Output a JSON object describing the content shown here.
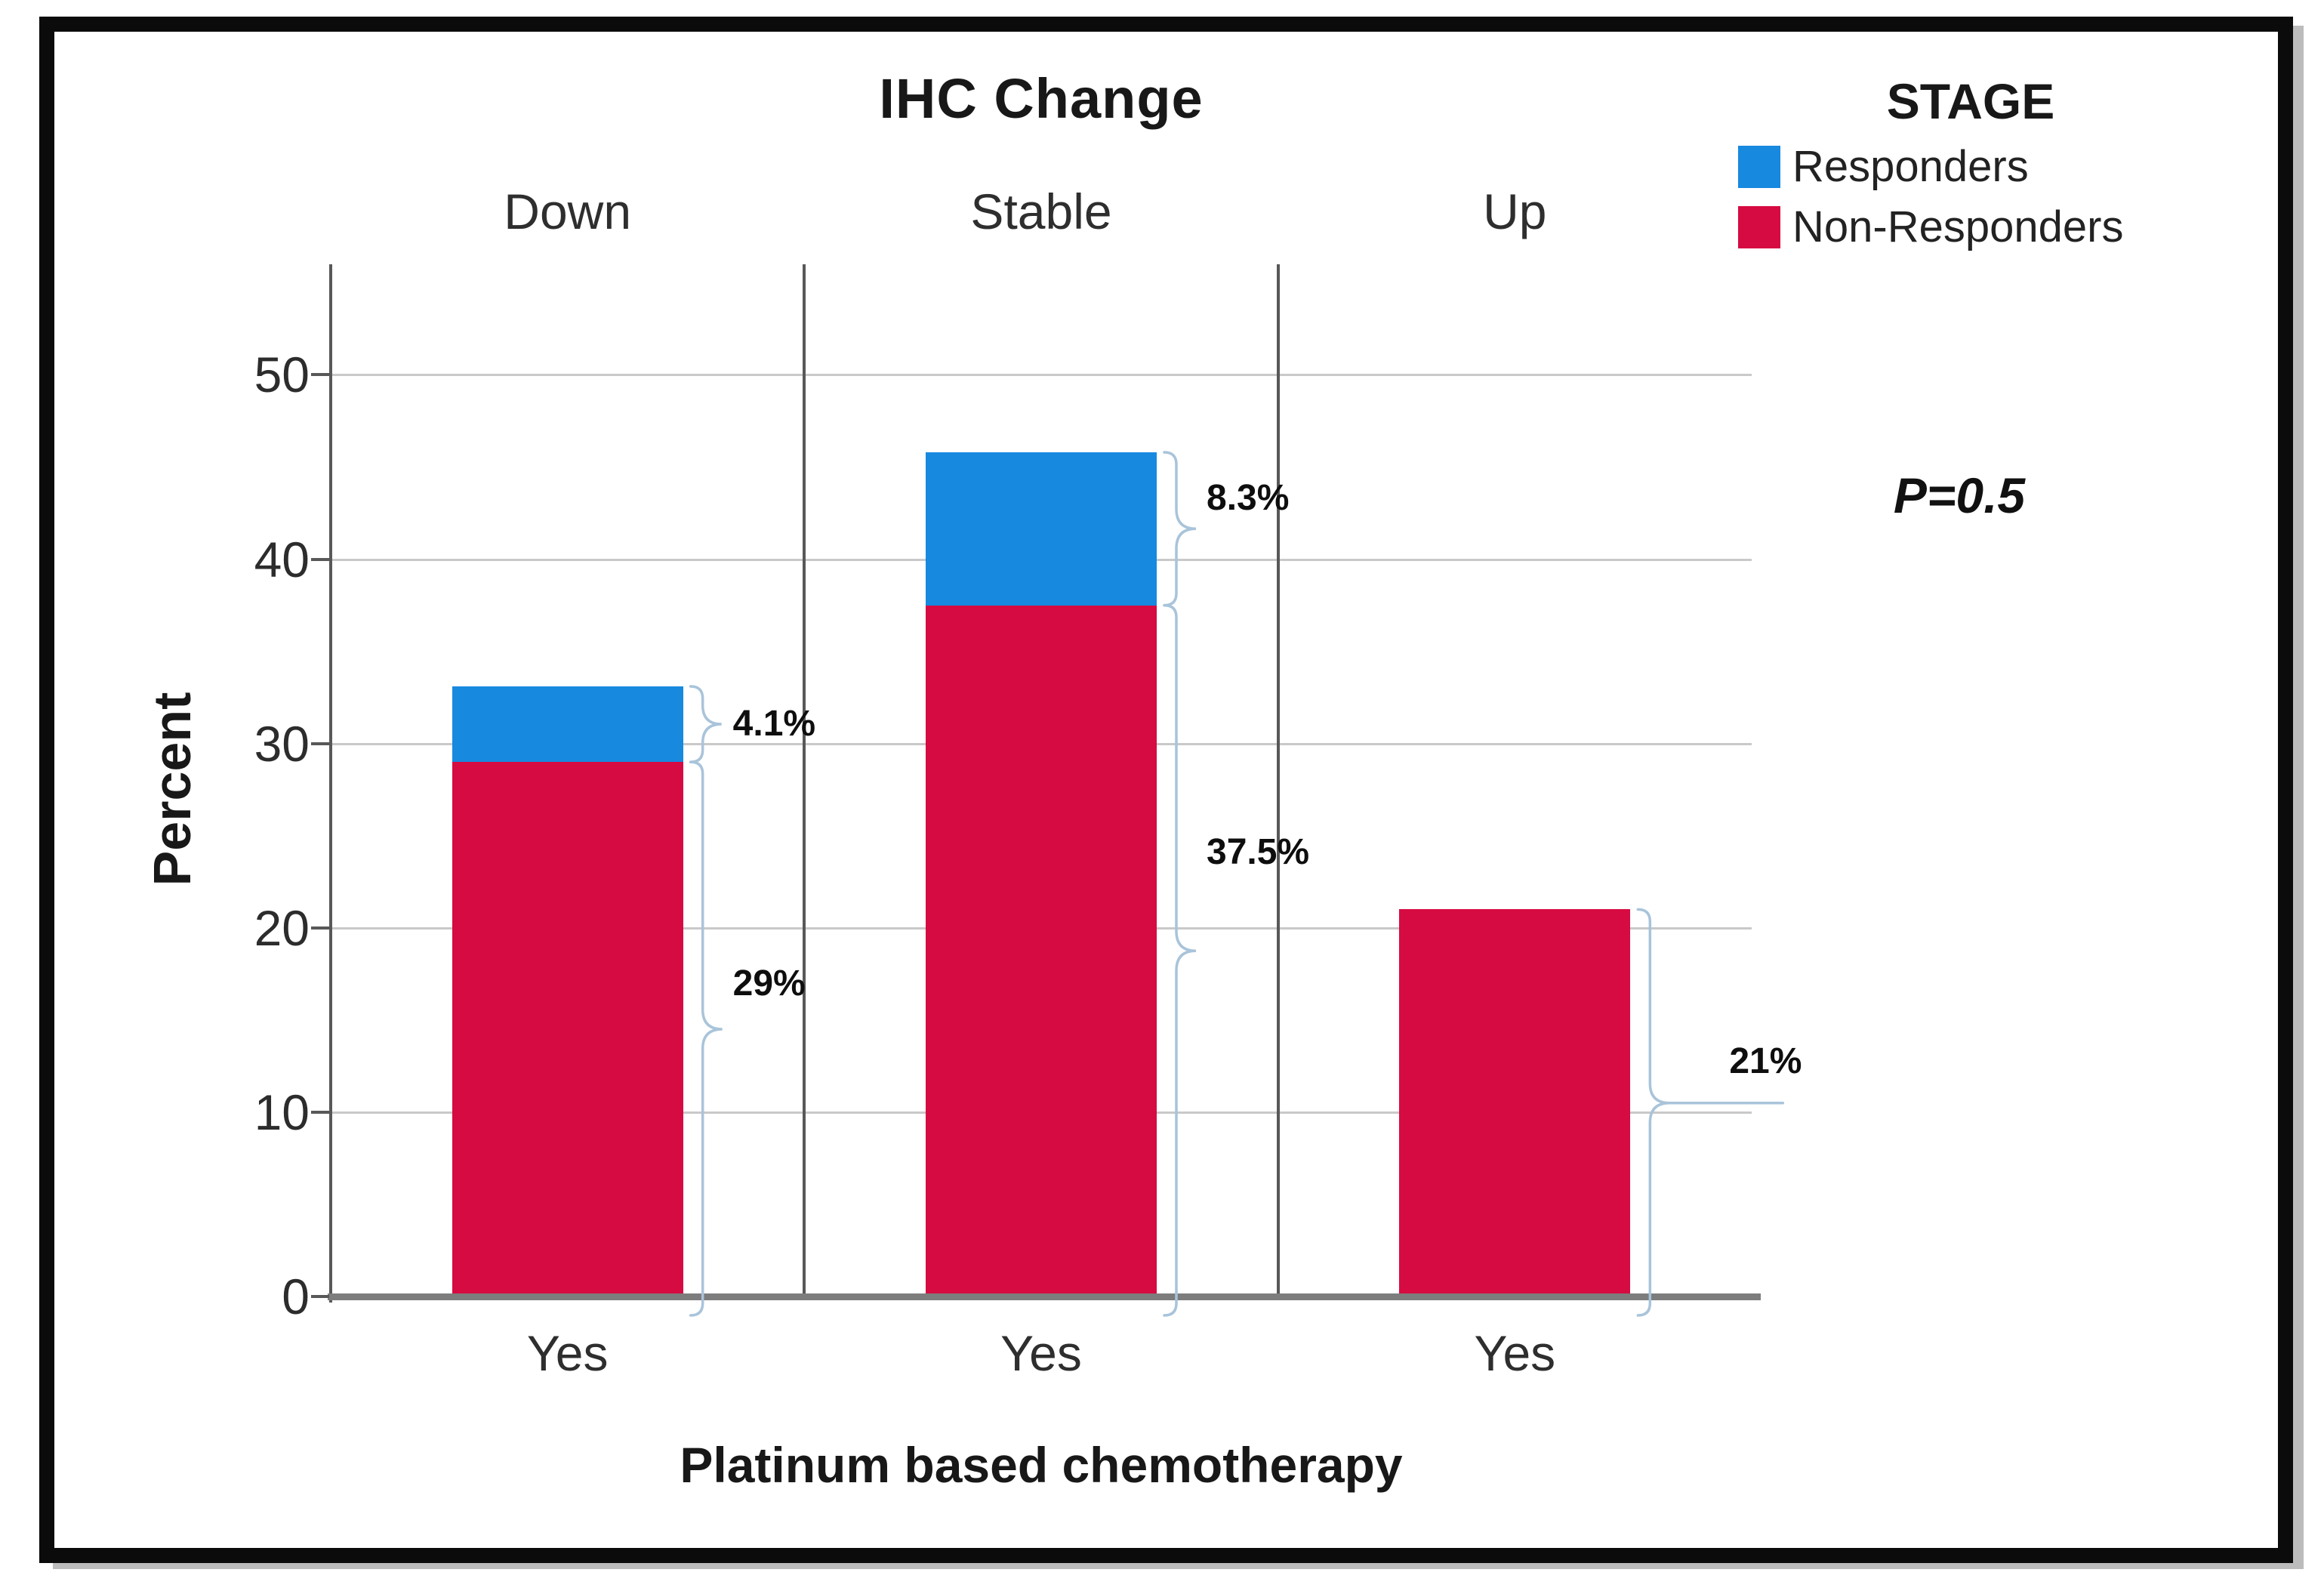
{
  "chart_data": {
    "type": "bar",
    "stacked": true,
    "title": "IHC Change",
    "legend_title": "STAGE",
    "categories": [
      "Down",
      "Stable",
      "Up"
    ],
    "x_tick_label": "Yes",
    "xlabel": "Platinum based chemotherapy",
    "ylabel": "Percent",
    "ylim": [
      0,
      56
    ],
    "yticks": [
      0,
      10,
      20,
      30,
      40,
      50
    ],
    "grid": "horizontal",
    "legend_position": "top-right",
    "series": [
      {
        "name": "Responders",
        "color": "#1789df",
        "values": [
          4.1,
          8.3,
          0
        ]
      },
      {
        "name": "Non-Responders",
        "color": "#d60b41",
        "values": [
          29,
          37.5,
          21
        ]
      }
    ],
    "annotations": [
      {
        "category": "Down",
        "series": "Responders",
        "label": "4.1%"
      },
      {
        "category": "Down",
        "series": "Non-Responders",
        "label": "29%"
      },
      {
        "category": "Stable",
        "series": "Responders",
        "label": "8.3%"
      },
      {
        "category": "Stable",
        "series": "Non-Responders",
        "label": "37.5%"
      },
      {
        "category": "Up",
        "series": "Non-Responders",
        "label": "21%"
      }
    ],
    "stat_note": "P=0.5",
    "colors": {
      "brace": "#a9c4da",
      "gridline": "#c9c9c9",
      "axis": "#585858",
      "baseline": "#7d7d7d"
    }
  }
}
